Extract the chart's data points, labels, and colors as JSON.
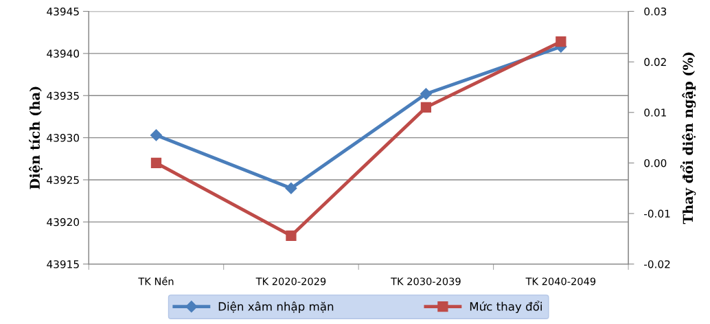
{
  "chart_data": {
    "type": "line",
    "ylabel": "Diện tích (ha)",
    "y2label": "Thay đổi diện ngập (%)",
    "categories": [
      "TK Nền",
      "TK 2020-2029",
      "TK 2030-2039",
      "TK 2040-2049"
    ],
    "series": [
      {
        "name": "Diện xâm nhập mặn",
        "color": "#4a7ebb",
        "marker": "diamond",
        "values": [
          43930.3,
          43924.0,
          43935.2,
          43940.8
        ]
      },
      {
        "name": "Mức thay đổi",
        "color": "#be4b48",
        "marker": "square",
        "axis": "y2",
        "values": [
          0.0,
          -0.0144,
          0.011,
          0.024
        ]
      }
    ],
    "ylim": [
      43915,
      43945
    ],
    "yticks": [
      43915,
      43920,
      43925,
      43930,
      43935,
      43940,
      43945
    ],
    "y2lim": [
      -0.02,
      0.03
    ],
    "y2ticks": [
      {
        "value": -0.02,
        "label": "-0.02"
      },
      {
        "value": -0.01,
        "label": "-0.01"
      },
      {
        "value": 0.0,
        "label": "0.00"
      },
      {
        "value": 0.01,
        "label": "0.01"
      },
      {
        "value": 0.02,
        "label": "0.02"
      },
      {
        "value": 0.03,
        "label": "0.03"
      }
    ],
    "grid": "y",
    "legend": "bottom",
    "line_style": "solid"
  }
}
